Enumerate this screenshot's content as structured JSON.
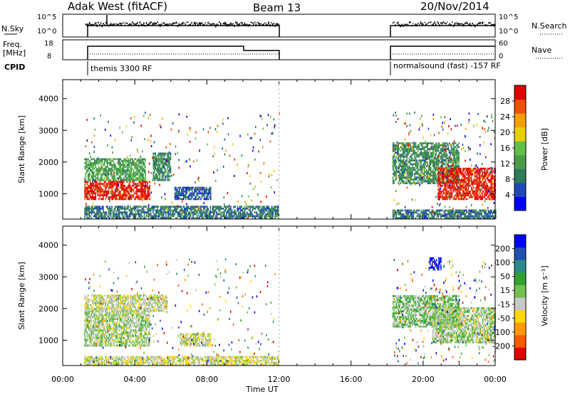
{
  "header": {
    "station": "Adak West (fitACF)",
    "beam": "Beam 13",
    "date": "20/Nov/2014"
  },
  "top_panel": {
    "left_label": "N.Sky",
    "right_label": "N.Search",
    "ticks": [
      "10^5",
      "10^0"
    ]
  },
  "freq_panel": {
    "left_label_1": "Freq.",
    "left_label_2": "[MHz]",
    "left_ticks": [
      "18",
      "8"
    ],
    "right_label": "Nave",
    "right_ticks": [
      "60",
      "0"
    ]
  },
  "cpid": {
    "label": "CPID",
    "mode1": "themis 3300 RF",
    "mode2": "normalsound (fast) -157 RF"
  },
  "colors": {
    "power": [
      "#0000ff",
      "#2048b8",
      "#2e7a5a",
      "#4a9a4a",
      "#62c04a",
      "#e8d000",
      "#f4a000",
      "#f05000",
      "#e00000"
    ],
    "velocity": [
      "#e00000",
      "#ff5a00",
      "#ff9a00",
      "#ffd800",
      "#c8c8c8",
      "#70c050",
      "#30a030",
      "#2a8a8a",
      "#2050b0",
      "#0000ff"
    ]
  },
  "chart_data": [
    {
      "type": "heatmap",
      "title": "",
      "xlabel": "Time UT",
      "ylabel": "Slant Range [km]",
      "xlim": [
        0,
        24
      ],
      "ylim": [
        200,
        4600
      ],
      "x_ticks": [
        "00:00",
        "04:00",
        "08:00",
        "12:00",
        "16:00",
        "20:00",
        "00:00"
      ],
      "y_ticks": [
        1000,
        2000,
        3000,
        4000
      ],
      "colorbar": {
        "label": "Power [dB]",
        "ticks": [
          4,
          8,
          12,
          16,
          20,
          24,
          28
        ],
        "range": [
          0,
          30
        ]
      },
      "regions": [
        {
          "t0": 1.2,
          "t1": 4.8,
          "r0": 800,
          "r1": 1400,
          "level": 28
        },
        {
          "t0": 1.2,
          "t1": 4.6,
          "r0": 1400,
          "r1": 2100,
          "level": 12
        },
        {
          "t0": 5.0,
          "t1": 6.0,
          "r0": 1400,
          "r1": 2300,
          "level": 10
        },
        {
          "t0": 6.2,
          "t1": 8.2,
          "r0": 800,
          "r1": 1200,
          "level": 6
        },
        {
          "t0": 1.2,
          "t1": 12.0,
          "r0": 200,
          "r1": 600,
          "level": 8
        },
        {
          "t0": 18.3,
          "t1": 22.0,
          "r0": 1300,
          "r1": 2600,
          "level": 10
        },
        {
          "t0": 20.8,
          "t1": 24.0,
          "r0": 800,
          "r1": 1800,
          "level": 28
        },
        {
          "t0": 18.3,
          "t1": 24.0,
          "r0": 200,
          "r1": 500,
          "level": 8
        }
      ]
    },
    {
      "type": "heatmap",
      "title": "",
      "xlabel": "Time UT",
      "ylabel": "Slant Range [km]",
      "xlim": [
        0,
        24
      ],
      "ylim": [
        200,
        4600
      ],
      "x_ticks": [
        "00:00",
        "04:00",
        "08:00",
        "12:00",
        "16:00",
        "20:00",
        "00:00"
      ],
      "y_ticks": [
        1000,
        2000,
        3000,
        4000
      ],
      "colorbar": {
        "label": "Velocity [m s⁻¹]",
        "ticks": [
          "200",
          "100",
          "50",
          "15",
          "-15",
          "-50",
          "-100",
          "-200"
        ],
        "range": [
          -250,
          250
        ]
      },
      "regions": [
        {
          "t0": 1.2,
          "t1": 4.8,
          "r0": 800,
          "r1": 1900,
          "level": 0
        },
        {
          "t0": 1.2,
          "t1": 5.8,
          "r0": 1900,
          "r1": 2400,
          "level": -20
        },
        {
          "t0": 6.5,
          "t1": 8.2,
          "r0": 800,
          "r1": 1200,
          "level": -30
        },
        {
          "t0": 18.3,
          "t1": 22.0,
          "r0": 1400,
          "r1": 2400,
          "level": 30
        },
        {
          "t0": 20.5,
          "t1": 24.0,
          "r0": 900,
          "r1": 2000,
          "level": 0
        },
        {
          "t0": 20.3,
          "t1": 21.0,
          "r0": 3200,
          "r1": 3600,
          "level": 220
        },
        {
          "t0": 1.2,
          "t1": 12.0,
          "r0": 200,
          "r1": 500,
          "level": -30
        }
      ]
    }
  ]
}
